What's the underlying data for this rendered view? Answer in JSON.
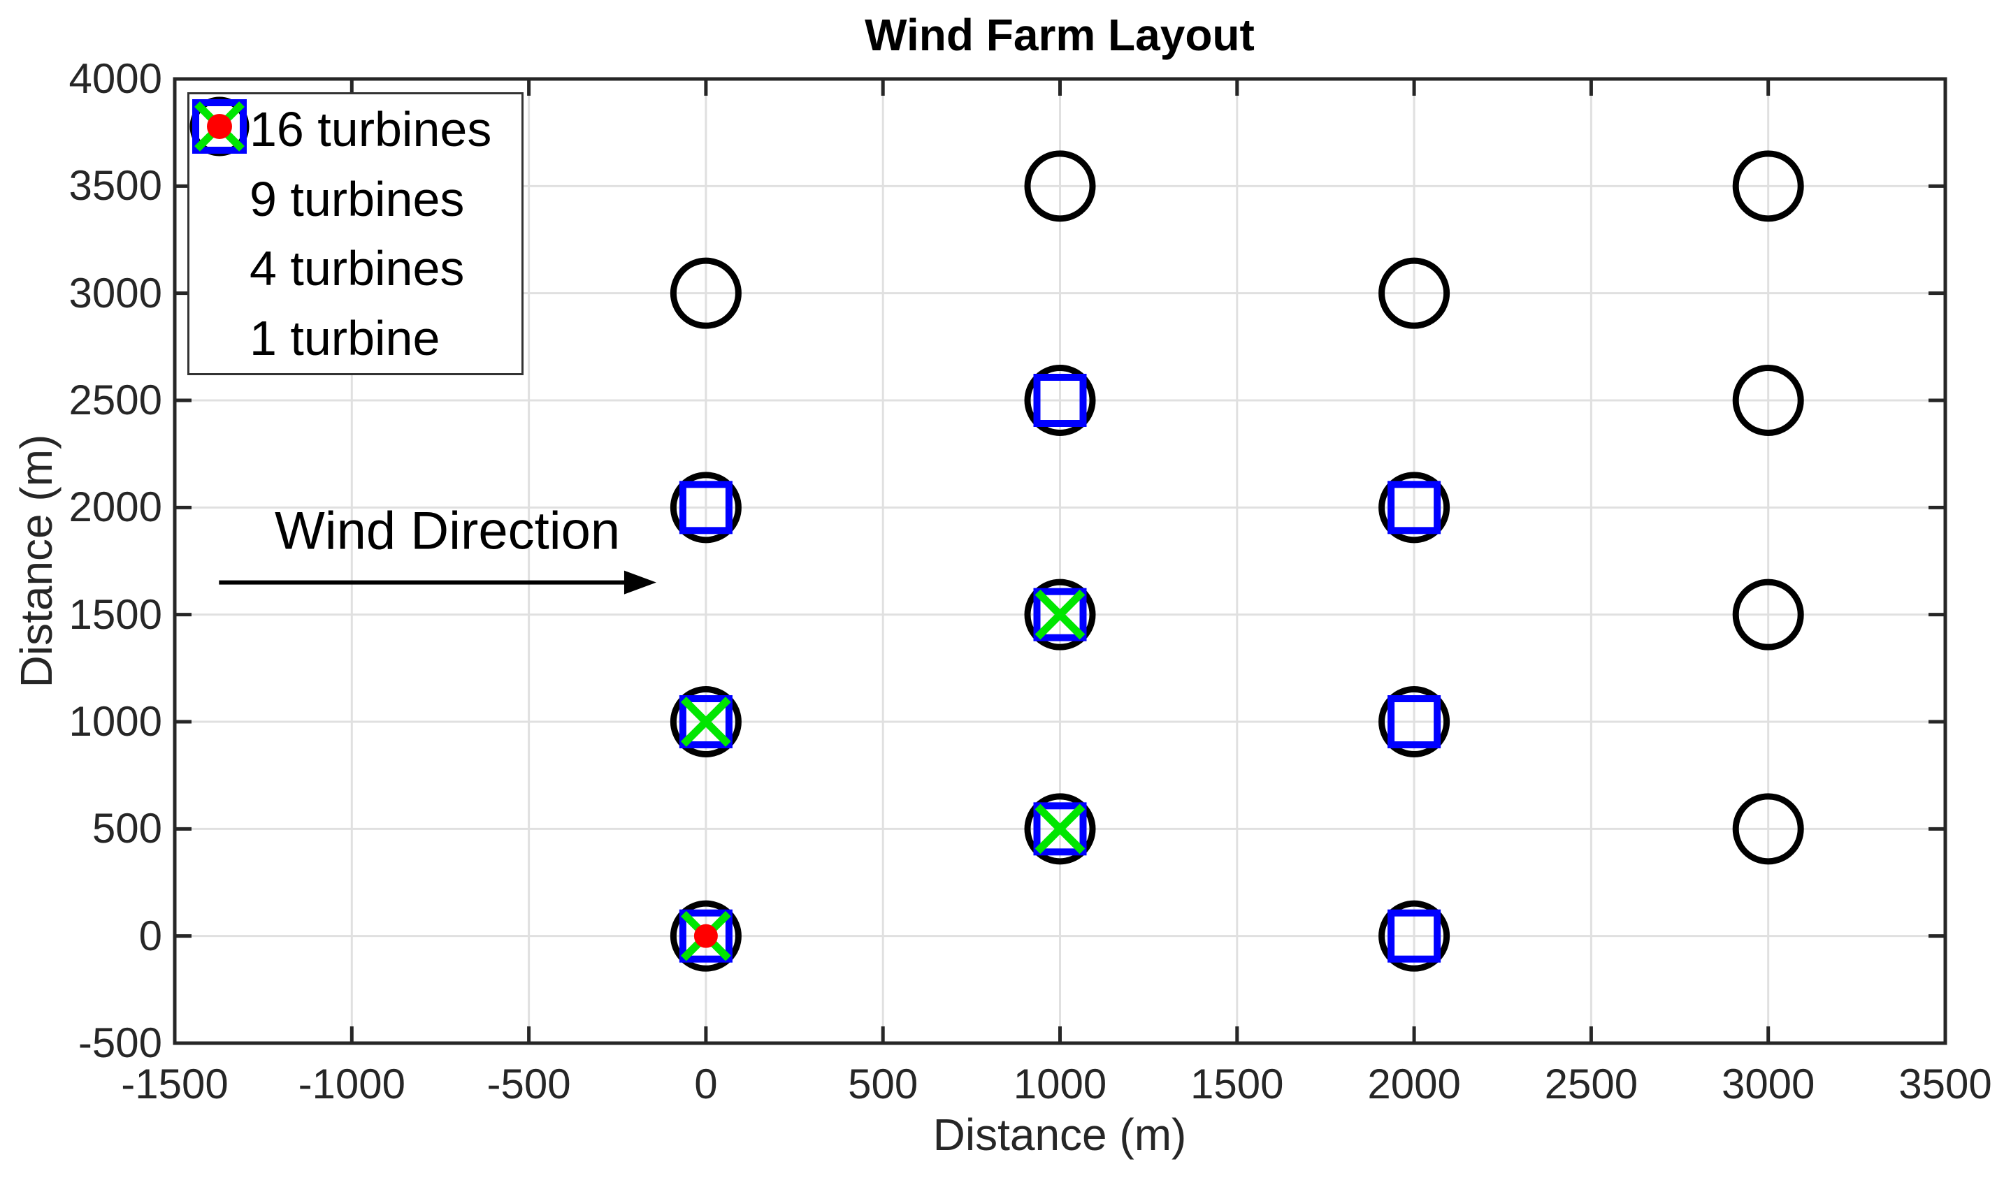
{
  "chart_data": {
    "type": "scatter",
    "title": "Wind Farm Layout",
    "xlabel": "Distance (m)",
    "ylabel": "Distance (m)",
    "xlim": [
      -1500,
      3500
    ],
    "ylim": [
      -500,
      4000
    ],
    "xticks": [
      -1500,
      -1000,
      -500,
      0,
      500,
      1000,
      1500,
      2000,
      2500,
      3000,
      3500
    ],
    "yticks": [
      -500,
      0,
      500,
      1000,
      1500,
      2000,
      2500,
      3000,
      3500,
      4000
    ],
    "grid": true,
    "legend_position": "top-left",
    "colors": {
      "circle": "#000000",
      "square": "#0000ff",
      "x": "#00e600",
      "dot": "#ff0000",
      "grid": "#e0e0e0",
      "axis": "#262626"
    },
    "series": [
      {
        "name": "16 turbines",
        "marker": "circle",
        "color": "#000000",
        "points": [
          [
            0,
            0
          ],
          [
            0,
            1000
          ],
          [
            0,
            2000
          ],
          [
            0,
            3000
          ],
          [
            1000,
            500
          ],
          [
            1000,
            1500
          ],
          [
            1000,
            2500
          ],
          [
            1000,
            3500
          ],
          [
            2000,
            0
          ],
          [
            2000,
            1000
          ],
          [
            2000,
            2000
          ],
          [
            2000,
            3000
          ],
          [
            3000,
            500
          ],
          [
            3000,
            1500
          ],
          [
            3000,
            2500
          ],
          [
            3000,
            3500
          ]
        ]
      },
      {
        "name": "9 turbines",
        "marker": "square",
        "color": "#0000ff",
        "points": [
          [
            0,
            0
          ],
          [
            0,
            1000
          ],
          [
            0,
            2000
          ],
          [
            1000,
            500
          ],
          [
            1000,
            1500
          ],
          [
            1000,
            2500
          ],
          [
            2000,
            0
          ],
          [
            2000,
            1000
          ],
          [
            2000,
            2000
          ]
        ]
      },
      {
        "name": "4 turbines",
        "marker": "x",
        "color": "#00e600",
        "points": [
          [
            0,
            0
          ],
          [
            0,
            1000
          ],
          [
            1000,
            500
          ],
          [
            1000,
            1500
          ]
        ]
      },
      {
        "name": "1 turbine",
        "marker": "dot",
        "color": "#ff0000",
        "points": [
          [
            0,
            0
          ]
        ]
      }
    ],
    "annotation": {
      "text": "Wind Direction",
      "text_at": [
        -730,
        1890
      ],
      "arrow_from": [
        -1375,
        1650
      ],
      "arrow_to": [
        -140,
        1650
      ]
    }
  }
}
